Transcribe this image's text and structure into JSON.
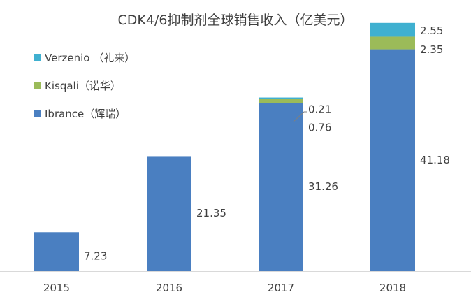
{
  "chart_data": {
    "type": "bar",
    "stacked": true,
    "title": "CDK4/6抑制剂全球销售收入（亿美元）",
    "categories": [
      "2015",
      "2016",
      "2017",
      "2018"
    ],
    "ylim": [
      0,
      48
    ],
    "grid": false,
    "legend_position": "top-left",
    "series": [
      {
        "name": "Ibrance（辉瑞）",
        "color": "#4a7fc1",
        "values": [
          7.23,
          21.35,
          31.26,
          41.18
        ]
      },
      {
        "name": "Kisqali（诺华）",
        "color": "#9bbb59",
        "values": [
          0,
          0,
          0.76,
          2.35
        ]
      },
      {
        "name": "Verzenio （礼来）",
        "color": "#3fb0d0",
        "values": [
          0,
          0,
          0.21,
          2.55
        ]
      }
    ],
    "data_labels": [
      [
        "7.23",
        "21.35",
        "31.26",
        "41.18"
      ],
      [
        "",
        "",
        "0.76",
        "2.35"
      ],
      [
        "",
        "",
        "0.21",
        "2.55"
      ]
    ]
  }
}
